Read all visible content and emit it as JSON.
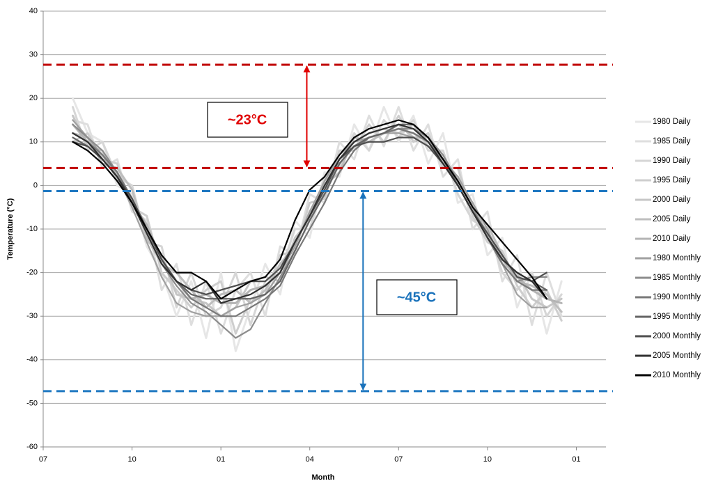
{
  "chart_data": {
    "type": "line",
    "x_label": "Month",
    "y_label": "Temperature (°C)",
    "xlim": [
      0,
      19
    ],
    "xticks": [
      {
        "value": 0,
        "label": "07"
      },
      {
        "value": 3,
        "label": "10"
      },
      {
        "value": 6,
        "label": "01"
      },
      {
        "value": 9,
        "label": "04"
      },
      {
        "value": 12,
        "label": "07"
      },
      {
        "value": 15,
        "label": "10"
      },
      {
        "value": 18,
        "label": "01"
      }
    ],
    "ylim": [
      -60,
      40
    ],
    "yticks": [
      -60,
      -50,
      -40,
      -30,
      -20,
      -10,
      0,
      10,
      20,
      30,
      40
    ],
    "grid": true,
    "legend": "right",
    "x": [
      1,
      1.5,
      2,
      2.5,
      3,
      3.5,
      4,
      4.5,
      5,
      5.5,
      6,
      6.5,
      7,
      7.5,
      8,
      8.5,
      9,
      9.5,
      10,
      10.5,
      11,
      11.5,
      12,
      12.5,
      13,
      13.5,
      14,
      14.5,
      15,
      15.5,
      16,
      16.5,
      17,
      17.5
    ],
    "series": [
      {
        "name": "1980 Daily",
        "color": "#e6e6e6",
        "values": [
          20,
          12,
          10,
          0,
          -2,
          -14,
          -20,
          -30,
          -22,
          -35,
          -20,
          -38,
          -28,
          -18,
          -25,
          -8,
          -12,
          3,
          2,
          14,
          8,
          18,
          10,
          16,
          5,
          12,
          -4,
          -2,
          -16,
          -12,
          -28,
          -20,
          -34,
          -22
        ]
      },
      {
        "name": "1985 Daily",
        "color": "#dedede",
        "values": [
          15,
          14,
          4,
          6,
          -6,
          -8,
          -24,
          -18,
          -32,
          -22,
          -34,
          -24,
          -20,
          -30,
          -14,
          -16,
          -2,
          -4,
          10,
          6,
          16,
          9,
          18,
          8,
          14,
          2,
          6,
          -10,
          -6,
          -22,
          -16,
          -32,
          -20,
          -30
        ]
      },
      {
        "name": "1990 Daily",
        "color": "#d6d6d6",
        "values": [
          18,
          8,
          10,
          2,
          0,
          -13,
          -14,
          -28,
          -20,
          -30,
          -28,
          -20,
          -32,
          -22,
          -20,
          -10,
          -10,
          2,
          4,
          12,
          8,
          15,
          11,
          15,
          8,
          8,
          -2,
          -8,
          -10,
          -20,
          -24,
          -20,
          -30,
          -25
        ]
      },
      {
        "name": "1995 Daily",
        "color": "#cecece",
        "values": [
          10,
          12,
          6,
          5,
          -5,
          -7,
          -20,
          -24,
          -28,
          -24,
          -22,
          -34,
          -26,
          -25,
          -16,
          -15,
          -4,
          -3,
          8,
          8,
          14,
          10,
          16,
          10,
          12,
          4,
          4,
          -7,
          -13,
          -15,
          -23,
          -28,
          -24,
          -31
        ]
      },
      {
        "name": "2000 Daily",
        "color": "#c6c6c6",
        "values": [
          16,
          9,
          8,
          1,
          -3,
          -11,
          -16,
          -25,
          -26,
          -27,
          -30,
          -28,
          -22,
          -21,
          -22,
          -12,
          -8,
          1,
          6,
          10,
          12,
          13,
          12,
          14,
          9,
          7,
          0,
          -4,
          -12,
          -18,
          -20,
          -26,
          -28,
          -26
        ]
      },
      {
        "name": "2005 Daily",
        "color": "#bebebe",
        "values": [
          12,
          11,
          5,
          4,
          -1,
          -12,
          -18,
          -20,
          -24,
          -28,
          -25,
          -24,
          -27,
          -24,
          -18,
          -14,
          -6,
          0,
          3,
          11,
          10,
          12,
          14,
          11,
          11,
          5,
          2,
          -6,
          -9,
          -16,
          -22,
          -23,
          -25,
          -29
        ]
      },
      {
        "name": "2010 Daily",
        "color": "#b4b4b4",
        "values": [
          14,
          10,
          7,
          3,
          -4,
          -9,
          -17,
          -22,
          -26,
          -25,
          -27,
          -27,
          -24,
          -23,
          -20,
          -13,
          -7,
          -2,
          5,
          9,
          11,
          12,
          13,
          12,
          10,
          6,
          1,
          -5,
          -11,
          -17,
          -21,
          -24,
          -26,
          -27
        ]
      },
      {
        "name": "1980 Monthly",
        "color": "#a0a0a0",
        "values": [
          15,
          11,
          7,
          2,
          -5,
          -13,
          -21,
          -27,
          -29,
          -30,
          -30,
          -28,
          -27,
          -25,
          -20,
          -14,
          -6,
          1,
          7,
          10,
          11,
          12,
          12,
          11,
          9,
          6,
          2,
          -4,
          -10,
          -18,
          -25,
          -28,
          -28,
          null
        ]
      },
      {
        "name": "1985 Monthly",
        "color": "#8c8c8c",
        "values": [
          14,
          11,
          8,
          3,
          -3,
          -11,
          -18,
          -23,
          -27,
          -29,
          -32,
          -35,
          -33,
          -27,
          -21,
          -15,
          -8,
          -2,
          5,
          9,
          11,
          12,
          13,
          13,
          11,
          7,
          1,
          -5,
          -12,
          -18,
          -22,
          -21,
          -21,
          null
        ]
      },
      {
        "name": "1990 Monthly",
        "color": "#787878",
        "values": [
          12,
          10,
          7,
          3,
          -3,
          -10,
          -17,
          -22,
          -26,
          -28,
          -30,
          -30,
          -28,
          -26,
          -23,
          -16,
          -10,
          -4,
          3,
          8,
          11,
          12,
          13,
          12,
          10,
          6,
          0,
          -6,
          -12,
          -18,
          -22,
          -24,
          -24,
          null
        ]
      },
      {
        "name": "1995 Monthly",
        "color": "#646464",
        "values": [
          11,
          9,
          6,
          2,
          -4,
          -10,
          -17,
          -22,
          -25,
          -26,
          -26,
          -26,
          -26,
          -25,
          -22,
          -15,
          -8,
          -2,
          5,
          9,
          11,
          12,
          14,
          14,
          11,
          6,
          0,
          -6,
          -12,
          -17,
          -20,
          -22,
          -24,
          null
        ]
      },
      {
        "name": "2000 Monthly",
        "color": "#4e4e4e",
        "values": [
          10,
          9,
          6,
          2,
          -3,
          -10,
          -17,
          -22,
          -24,
          -25,
          -24,
          -23,
          -22,
          -22,
          -19,
          -13,
          -7,
          -1,
          6,
          9,
          10,
          10,
          11,
          11,
          9,
          5,
          0,
          -6,
          -11,
          -16,
          -21,
          -22,
          -20,
          null
        ]
      },
      {
        "name": "2005 Monthly",
        "color": "#303030",
        "values": [
          12,
          10,
          6,
          2,
          -4,
          -11,
          -18,
          -22,
          -24,
          -22,
          -27,
          -26,
          -25,
          -23,
          -20,
          -13,
          -7,
          0,
          6,
          10,
          12,
          13,
          14,
          13,
          10,
          5,
          0,
          -6,
          -12,
          -17,
          -20,
          -22,
          -26,
          null
        ]
      },
      {
        "name": "2010 Monthly",
        "color": "#000000",
        "values": [
          10,
          8,
          5,
          1,
          -4,
          -10,
          -16,
          -20,
          -20,
          -22,
          -26,
          -24,
          -22,
          -21,
          -17,
          -8,
          -1,
          2,
          7,
          11,
          13,
          14,
          15,
          14,
          11,
          6,
          1,
          -5,
          -9,
          -13,
          -17,
          -21,
          -26,
          null
        ]
      }
    ],
    "reference_lines": [
      {
        "value": 27.7,
        "color": "#c00000"
      },
      {
        "value": 4,
        "color": "#c00000"
      },
      {
        "value": -1.3,
        "color": "#1f78c1"
      },
      {
        "value": -47.2,
        "color": "#1f78c1"
      }
    ],
    "annotations": [
      {
        "text": "~23°C",
        "color": "#e00000",
        "x": 8.9,
        "from": 27.7,
        "to": 4
      },
      {
        "text": "~45°C",
        "color": "#1a72bb",
        "x": 10.8,
        "from": -1.3,
        "to": -47.2
      }
    ]
  }
}
